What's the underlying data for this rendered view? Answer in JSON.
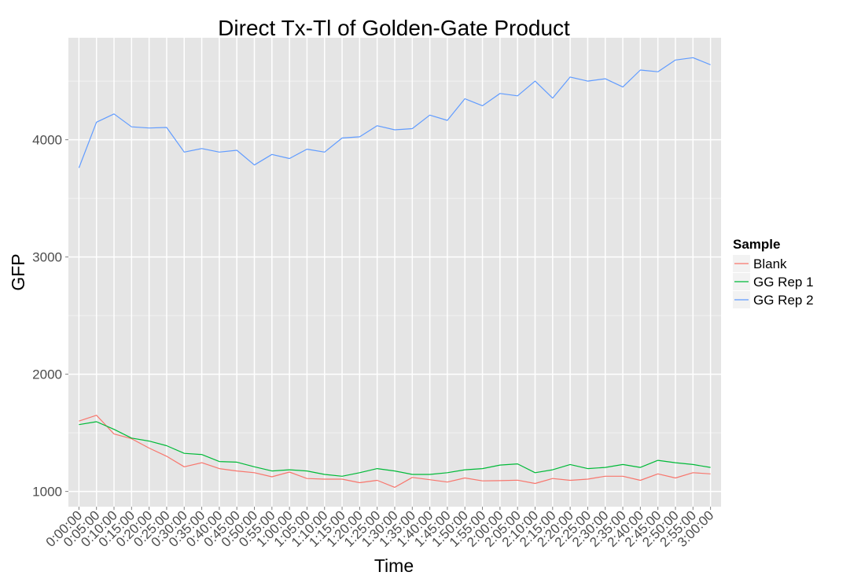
{
  "chart_data": {
    "type": "line",
    "title": "Direct Tx-Tl of Golden-Gate Product",
    "xlabel": "Time",
    "ylabel": "GFP",
    "ylim": [
      870,
      4870
    ],
    "yticks": [
      1000,
      2000,
      3000,
      4000
    ],
    "grid": true,
    "legend": {
      "title": "Sample",
      "position": "right"
    },
    "x": [
      "0:00:00",
      "0:05:00",
      "0:10:00",
      "0:15:00",
      "0:20:00",
      "0:25:00",
      "0:30:00",
      "0:35:00",
      "0:40:00",
      "0:45:00",
      "0:50:00",
      "0:55:00",
      "1:00:00",
      "1:05:00",
      "1:10:00",
      "1:15:00",
      "1:20:00",
      "1:25:00",
      "1:30:00",
      "1:35:00",
      "1:40:00",
      "1:45:00",
      "1:50:00",
      "1:55:00",
      "2:00:00",
      "2:05:00",
      "2:10:00",
      "2:15:00",
      "2:20:00",
      "2:25:00",
      "2:30:00",
      "2:35:00",
      "2:40:00",
      "2:45:00",
      "2:50:00",
      "2:55:00",
      "3:00:00"
    ],
    "series": [
      {
        "name": "Blank",
        "color": "#F8766D",
        "values": [
          1600,
          1650,
          1490,
          1450,
          1370,
          1300,
          1210,
          1245,
          1195,
          1175,
          1160,
          1125,
          1165,
          1110,
          1105,
          1105,
          1075,
          1095,
          1035,
          1120,
          1100,
          1080,
          1115,
          1090,
          1092,
          1096,
          1068,
          1110,
          1095,
          1105,
          1130,
          1130,
          1095,
          1150,
          1115,
          1160,
          1150
        ]
      },
      {
        "name": "GG Rep 1",
        "color": "#00BA38",
        "values": [
          1570,
          1595,
          1530,
          1455,
          1430,
          1390,
          1325,
          1315,
          1255,
          1250,
          1210,
          1175,
          1185,
          1175,
          1145,
          1130,
          1160,
          1195,
          1175,
          1145,
          1145,
          1160,
          1185,
          1195,
          1225,
          1235,
          1160,
          1185,
          1230,
          1195,
          1205,
          1230,
          1205,
          1265,
          1245,
          1230,
          1205
        ]
      },
      {
        "name": "GG Rep 2",
        "color": "#619CFF",
        "values": [
          3760,
          4150,
          4220,
          4110,
          4100,
          4105,
          3895,
          3925,
          3895,
          3910,
          3785,
          3875,
          3840,
          3920,
          3895,
          4015,
          4025,
          4120,
          4085,
          4095,
          4210,
          4165,
          4350,
          4290,
          4395,
          4375,
          4500,
          4355,
          4535,
          4500,
          4520,
          4450,
          4595,
          4580,
          4680,
          4700,
          4640
        ]
      }
    ]
  }
}
